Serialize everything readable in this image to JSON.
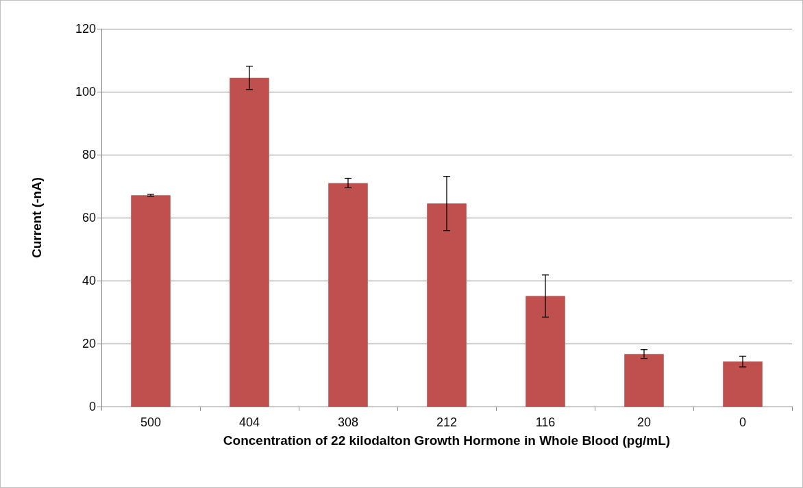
{
  "chart_data": {
    "type": "bar",
    "xlabel": "Concentration of 22 kilodalton Growth Hormone in Whole Blood (pg/mL)",
    "ylabel": "Current (-nA)",
    "categories": [
      "500",
      "404",
      "308",
      "212",
      "116",
      "20",
      "0"
    ],
    "values": [
      67.1,
      104.4,
      71.0,
      64.5,
      35.1,
      16.7,
      14.3
    ],
    "errors": [
      0.3,
      3.7,
      1.5,
      8.6,
      6.7,
      1.4,
      1.7
    ],
    "color": "#c0504d",
    "ylim": [
      0,
      120
    ],
    "yticks": [
      0,
      20,
      40,
      60,
      80,
      100,
      120
    ],
    "grid": "y"
  }
}
